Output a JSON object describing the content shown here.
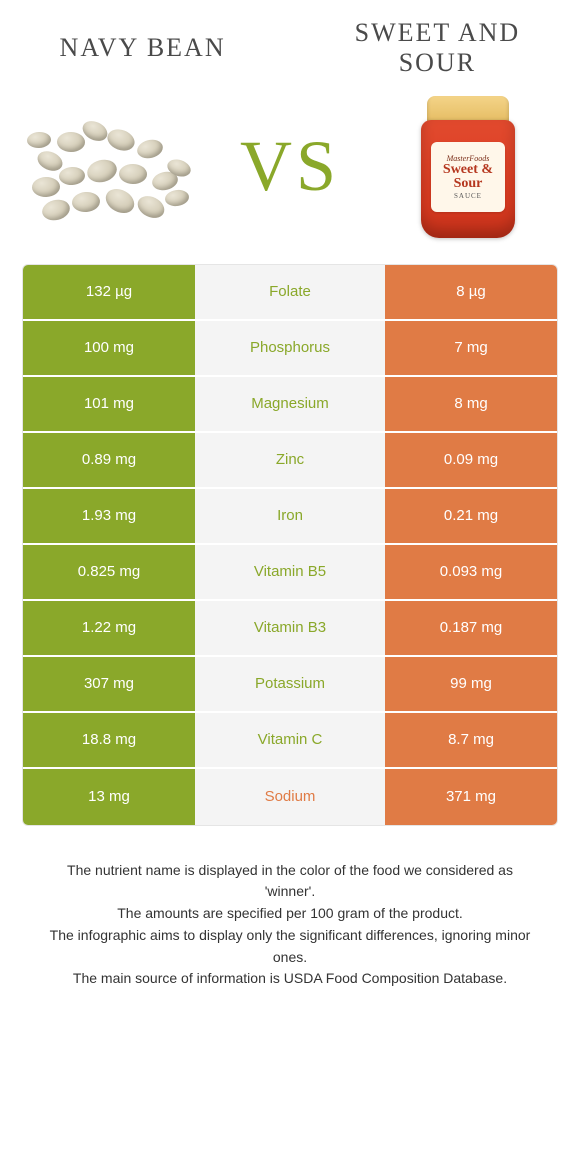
{
  "colors": {
    "left": "#8aa82a",
    "right": "#e07b45",
    "mid_bg": "#f4f4f4",
    "mid_text_left": "#8aa82a",
    "mid_text_right": "#e07b45"
  },
  "left_title": "NAVY BEAN",
  "right_title": "SWEET AND SOUR",
  "vs_text": "VS",
  "jar": {
    "brand": "MasterFoods",
    "name": "Sweet & Sour",
    "sub": "SAUCE"
  },
  "rows": [
    {
      "nutrient": "Folate",
      "left": "132 µg",
      "right": "8 µg",
      "winner": "left"
    },
    {
      "nutrient": "Phosphorus",
      "left": "100 mg",
      "right": "7 mg",
      "winner": "left"
    },
    {
      "nutrient": "Magnesium",
      "left": "101 mg",
      "right": "8 mg",
      "winner": "left"
    },
    {
      "nutrient": "Zinc",
      "left": "0.89 mg",
      "right": "0.09 mg",
      "winner": "left"
    },
    {
      "nutrient": "Iron",
      "left": "1.93 mg",
      "right": "0.21 mg",
      "winner": "left"
    },
    {
      "nutrient": "Vitamin B5",
      "left": "0.825 mg",
      "right": "0.093 mg",
      "winner": "left"
    },
    {
      "nutrient": "Vitamin B3",
      "left": "1.22 mg",
      "right": "0.187 mg",
      "winner": "left"
    },
    {
      "nutrient": "Potassium",
      "left": "307 mg",
      "right": "99 mg",
      "winner": "left"
    },
    {
      "nutrient": "Vitamin C",
      "left": "18.8 mg",
      "right": "8.7 mg",
      "winner": "left"
    },
    {
      "nutrient": "Sodium",
      "left": "13 mg",
      "right": "371 mg",
      "winner": "right"
    }
  ],
  "footer": [
    "The nutrient name is displayed in the color of the food we considered as 'winner'.",
    "The amounts are specified per 100 gram of the product.",
    "The infographic aims to display only the significant differences, ignoring minor ones.",
    "The main source of information is USDA Food Composition Database."
  ]
}
